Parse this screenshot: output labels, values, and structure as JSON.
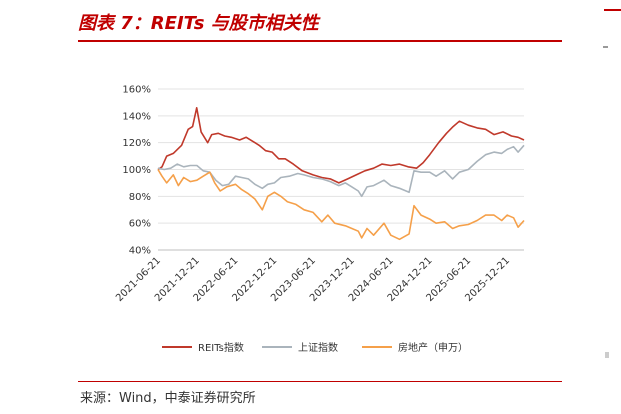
{
  "header": {
    "title": "图表 7：REITs 与股市相关性"
  },
  "source": {
    "text": "来源：Wind，中泰证券研究所"
  },
  "chart_data": {
    "type": "line",
    "title": "图表 7：REITs 与股市相关性",
    "xlabel": "",
    "ylabel": "",
    "ylim": [
      40,
      160
    ],
    "yticks": [
      "160%",
      "140%",
      "120%",
      "100%",
      "80%",
      "60%",
      "40%"
    ],
    "ytick_values": [
      160,
      140,
      120,
      100,
      80,
      60,
      40
    ],
    "xticks": [
      "2021-06-21",
      "2021-12-21",
      "2022-06-21",
      "2022-12-21",
      "2023-06-21",
      "2023-12-21",
      "2024-06-21",
      "2024-12-21",
      "2025-06-21",
      "2025-12-21"
    ],
    "grid": true,
    "legend_position": "bottom",
    "series": [
      {
        "name": "REITs指数",
        "color": "#c0392b",
        "points": [
          [
            "2021-06-21",
            100
          ],
          [
            "2021-07-10",
            102
          ],
          [
            "2021-08-01",
            110
          ],
          [
            "2021-09-01",
            112
          ],
          [
            "2021-10-10",
            118
          ],
          [
            "2021-11-10",
            130
          ],
          [
            "2021-12-01",
            132
          ],
          [
            "2021-12-20",
            146
          ],
          [
            "2022-01-10",
            128
          ],
          [
            "2022-02-10",
            120
          ],
          [
            "2022-03-01",
            126
          ],
          [
            "2022-04-01",
            127
          ],
          [
            "2022-05-01",
            125
          ],
          [
            "2022-06-01",
            124
          ],
          [
            "2022-07-10",
            122
          ],
          [
            "2022-08-10",
            124
          ],
          [
            "2022-09-10",
            121
          ],
          [
            "2022-10-10",
            118
          ],
          [
            "2022-11-10",
            114
          ],
          [
            "2022-12-10",
            113
          ],
          [
            "2023-01-10",
            108
          ],
          [
            "2023-02-10",
            108
          ],
          [
            "2023-03-20",
            104
          ],
          [
            "2023-05-01",
            99
          ],
          [
            "2023-06-21",
            96
          ],
          [
            "2023-08-01",
            94
          ],
          [
            "2023-09-10",
            93
          ],
          [
            "2023-10-20",
            90
          ],
          [
            "2023-12-01",
            93
          ],
          [
            "2024-01-10",
            96
          ],
          [
            "2024-02-20",
            99
          ],
          [
            "2024-04-01",
            101
          ],
          [
            "2024-05-10",
            104
          ],
          [
            "2024-06-21",
            103
          ],
          [
            "2024-08-01",
            104
          ],
          [
            "2024-09-10",
            102
          ],
          [
            "2024-10-20",
            101
          ],
          [
            "2024-11-20",
            105
          ],
          [
            "2024-12-21",
            111
          ],
          [
            "2025-02-01",
            120
          ],
          [
            "2025-03-10",
            127
          ],
          [
            "2025-04-10",
            132
          ],
          [
            "2025-05-10",
            136
          ],
          [
            "2025-06-21",
            133
          ],
          [
            "2025-08-01",
            131
          ],
          [
            "2025-09-10",
            130
          ],
          [
            "2025-10-20",
            126
          ],
          [
            "2025-12-01",
            128
          ],
          [
            "2026-01-10",
            125
          ],
          [
            "2026-02-10",
            124
          ],
          [
            "2026-03-10",
            122
          ]
        ]
      },
      {
        "name": "上证指数",
        "color": "#aab4bc",
        "points": [
          [
            "2021-06-21",
            101
          ],
          [
            "2021-07-20",
            100
          ],
          [
            "2021-08-20",
            101
          ],
          [
            "2021-09-20",
            104
          ],
          [
            "2021-10-20",
            102
          ],
          [
            "2021-11-20",
            103
          ],
          [
            "2021-12-21",
            103
          ],
          [
            "2022-01-20",
            99
          ],
          [
            "2022-02-20",
            98
          ],
          [
            "2022-03-20",
            92
          ],
          [
            "2022-04-20",
            88
          ],
          [
            "2022-05-20",
            89
          ],
          [
            "2022-06-21",
            95
          ],
          [
            "2022-07-20",
            94
          ],
          [
            "2022-08-20",
            93
          ],
          [
            "2022-09-20",
            89
          ],
          [
            "2022-10-25",
            86
          ],
          [
            "2022-11-20",
            89
          ],
          [
            "2022-12-21",
            90
          ],
          [
            "2023-01-20",
            94
          ],
          [
            "2023-03-01",
            95
          ],
          [
            "2023-04-10",
            97
          ],
          [
            "2023-05-10",
            96
          ],
          [
            "2023-06-21",
            94
          ],
          [
            "2023-08-01",
            93
          ],
          [
            "2023-09-10",
            91
          ],
          [
            "2023-10-20",
            88
          ],
          [
            "2023-11-20",
            90
          ],
          [
            "2023-12-21",
            87
          ],
          [
            "2024-01-20",
            84
          ],
          [
            "2024-02-05",
            80
          ],
          [
            "2024-03-01",
            87
          ],
          [
            "2024-04-01",
            88
          ],
          [
            "2024-05-20",
            92
          ],
          [
            "2024-06-21",
            88
          ],
          [
            "2024-08-01",
            86
          ],
          [
            "2024-09-15",
            83
          ],
          [
            "2024-10-08",
            99
          ],
          [
            "2024-11-10",
            98
          ],
          [
            "2024-12-21",
            98
          ],
          [
            "2025-01-20",
            95
          ],
          [
            "2025-03-01",
            99
          ],
          [
            "2025-04-08",
            93
          ],
          [
            "2025-05-10",
            98
          ],
          [
            "2025-06-21",
            100
          ],
          [
            "2025-08-01",
            106
          ],
          [
            "2025-09-10",
            111
          ],
          [
            "2025-10-20",
            113
          ],
          [
            "2025-11-25",
            112
          ],
          [
            "2025-12-21",
            115
          ],
          [
            "2026-01-20",
            117
          ],
          [
            "2026-02-10",
            113
          ],
          [
            "2026-03-10",
            118
          ]
        ]
      },
      {
        "name": "房地产（申万）",
        "color": "#f5a04a",
        "points": [
          [
            "2021-06-21",
            100
          ],
          [
            "2021-07-10",
            95
          ],
          [
            "2021-08-01",
            90
          ],
          [
            "2021-09-01",
            96
          ],
          [
            "2021-09-25",
            88
          ],
          [
            "2021-10-20",
            94
          ],
          [
            "2021-11-20",
            91
          ],
          [
            "2021-12-21",
            92
          ],
          [
            "2022-01-20",
            95
          ],
          [
            "2022-02-20",
            98
          ],
          [
            "2022-03-15",
            90
          ],
          [
            "2022-04-10",
            84
          ],
          [
            "2022-05-10",
            87
          ],
          [
            "2022-06-21",
            89
          ],
          [
            "2022-07-20",
            85
          ],
          [
            "2022-08-20",
            82
          ],
          [
            "2022-09-20",
            78
          ],
          [
            "2022-10-25",
            70
          ],
          [
            "2022-11-20",
            80
          ],
          [
            "2022-12-21",
            83
          ],
          [
            "2023-01-20",
            80
          ],
          [
            "2023-02-20",
            76
          ],
          [
            "2023-04-01",
            74
          ],
          [
            "2023-05-10",
            70
          ],
          [
            "2023-06-21",
            68
          ],
          [
            "2023-08-01",
            61
          ],
          [
            "2023-08-30",
            66
          ],
          [
            "2023-10-01",
            60
          ],
          [
            "2023-11-20",
            58
          ],
          [
            "2023-12-21",
            56
          ],
          [
            "2024-01-20",
            54
          ],
          [
            "2024-02-05",
            49
          ],
          [
            "2024-03-01",
            56
          ],
          [
            "2024-04-01",
            51
          ],
          [
            "2024-05-20",
            60
          ],
          [
            "2024-06-21",
            51
          ],
          [
            "2024-08-01",
            48
          ],
          [
            "2024-09-15",
            52
          ],
          [
            "2024-10-08",
            73
          ],
          [
            "2024-11-10",
            66
          ],
          [
            "2024-12-21",
            63
          ],
          [
            "2025-01-20",
            60
          ],
          [
            "2025-03-01",
            61
          ],
          [
            "2025-04-08",
            56
          ],
          [
            "2025-05-10",
            58
          ],
          [
            "2025-06-21",
            59
          ],
          [
            "2025-08-01",
            62
          ],
          [
            "2025-09-10",
            66
          ],
          [
            "2025-10-20",
            66
          ],
          [
            "2025-11-25",
            62
          ],
          [
            "2025-12-21",
            66
          ],
          [
            "2026-01-20",
            64
          ],
          [
            "2026-02-10",
            57
          ],
          [
            "2026-03-10",
            62
          ]
        ]
      }
    ]
  }
}
